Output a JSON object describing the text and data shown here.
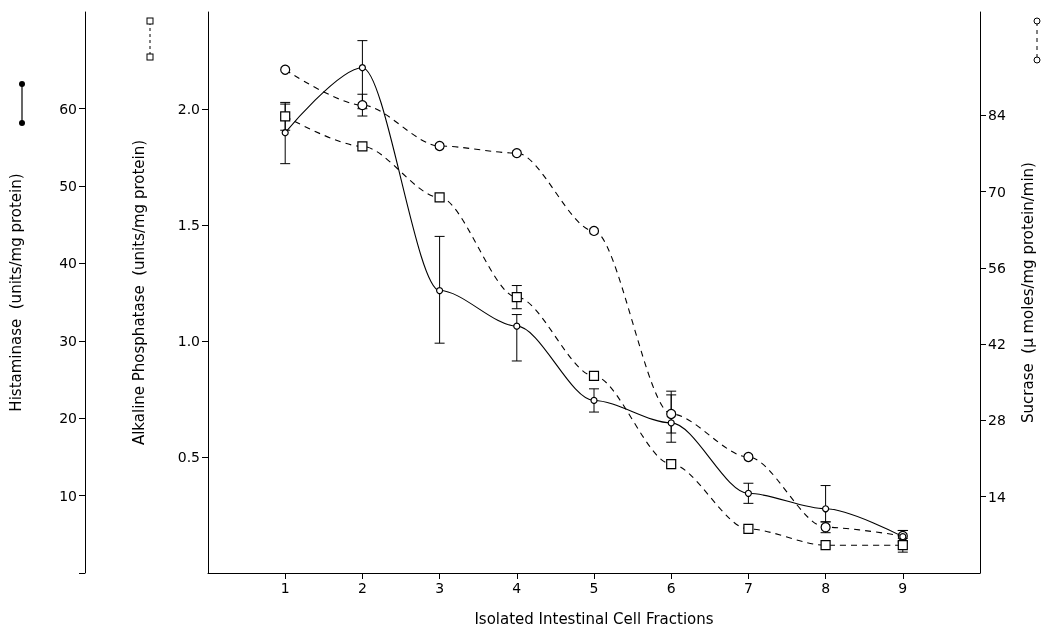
{
  "chart_data": {
    "type": "line",
    "xlabel": "Isolated Intestinal Cell Fractions",
    "ylabel": "Histaminase  (units/mg protein)",
    "y2label": "Alkaline Phosphatase  (units/mg protein)",
    "y3label": "Sucrase  (μ moles/mg protein/min)",
    "x": [
      1,
      2,
      3,
      4,
      5,
      6,
      7,
      8,
      9
    ],
    "xlim": [
      0,
      10
    ],
    "xticks": [
      1,
      2,
      3,
      4,
      5,
      6,
      7,
      8,
      9
    ],
    "ylim": [
      0,
      72.5
    ],
    "yticks": [
      {
        "value": 0,
        "label": null
      },
      10,
      20,
      30,
      40,
      50,
      60
    ],
    "y2lim": [
      0,
      2.42
    ],
    "y2ticks": [
      0.5,
      {
        "value": 1,
        "label": "1.0"
      },
      1.5,
      {
        "value": 2,
        "label": "2.0"
      }
    ],
    "y3lim": [
      0,
      103
    ],
    "y3ticks": [
      14,
      28,
      42,
      56,
      70,
      84
    ],
    "grid": false,
    "series": [
      {
        "color": "#000000",
        "marker": "circle",
        "line_style": "solid",
        "values": [
          56.9,
          65.3,
          36.5,
          31.9,
          22.3,
          19.4,
          10.3,
          8.3,
          4.7
        ],
        "errors": [
          [
            52.9,
            60.6
          ],
          [
            60,
            68.8
          ],
          [
            29.7,
            43.5
          ],
          [
            27.4,
            33.4
          ],
          [
            20.8,
            23.8
          ],
          [
            16.9,
            23.5
          ],
          [
            9,
            11.6
          ],
          [
            6.6,
            11.3
          ],
          0.8
        ]
      },
      {
        "color": "#000000",
        "marker": "square",
        "line_style": "dashed",
        "axis": "y2",
        "values": [
          1.97,
          1.84,
          1.62,
          1.19,
          0.85,
          0.47,
          0.19,
          0.12,
          0.12
        ],
        "errors": [
          0.06,
          null,
          null,
          0.05,
          null,
          null,
          null,
          null,
          0.03
        ]
      },
      {
        "color": "#000000",
        "marker": "circle",
        "line_style": "dashed",
        "axis": "y3",
        "values": [
          92.4,
          85.9,
          78.4,
          77.1,
          62.8,
          29.2,
          21.3,
          8.4,
          6.8
        ],
        "errors": [
          null,
          2,
          null,
          null,
          null,
          3.5,
          null,
          1,
          1
        ]
      }
    ]
  }
}
